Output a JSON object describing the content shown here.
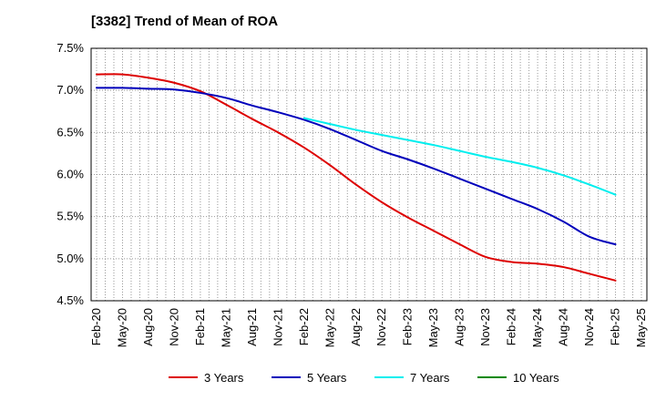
{
  "chart_data": {
    "type": "line",
    "title": "[3382]  Trend of Mean of ROA",
    "xlabel": "",
    "ylabel": "",
    "categories": [
      "Feb-20",
      "May-20",
      "Aug-20",
      "Nov-20",
      "Feb-21",
      "May-21",
      "Aug-21",
      "Nov-21",
      "Feb-22",
      "May-22",
      "Aug-22",
      "Nov-22",
      "Feb-23",
      "May-23",
      "Aug-23",
      "Nov-23",
      "Feb-24",
      "May-24",
      "Aug-24",
      "Nov-24",
      "Feb-25",
      "May-25"
    ],
    "ylim": [
      4.5,
      7.5
    ],
    "yticks": [
      4.5,
      5.0,
      5.5,
      6.0,
      6.5,
      7.0,
      7.5
    ],
    "ytick_labels": [
      "4.5%",
      "5.0%",
      "5.5%",
      "6.0%",
      "6.5%",
      "7.0%",
      "7.5%"
    ],
    "grid": true,
    "legend_position": "bottom",
    "series": [
      {
        "name": "3 Years",
        "color": "#dd0000",
        "values": [
          7.19,
          7.19,
          7.15,
          7.09,
          6.99,
          6.83,
          6.66,
          6.5,
          6.32,
          6.11,
          5.88,
          5.67,
          5.49,
          5.33,
          5.17,
          5.02,
          4.96,
          4.94,
          4.9,
          4.82,
          4.74,
          null
        ]
      },
      {
        "name": "5 Years",
        "color": "#0000bb",
        "values": [
          7.03,
          7.03,
          7.02,
          7.01,
          6.97,
          6.91,
          6.82,
          6.74,
          6.65,
          6.54,
          6.41,
          6.28,
          6.18,
          6.07,
          5.95,
          5.83,
          5.71,
          5.59,
          5.44,
          5.26,
          5.17,
          null
        ]
      },
      {
        "name": "7 Years",
        "color": "#00eeee",
        "values": [
          null,
          null,
          null,
          null,
          null,
          null,
          null,
          null,
          6.67,
          6.6,
          6.53,
          6.47,
          6.41,
          6.35,
          6.28,
          6.21,
          6.15,
          6.08,
          5.99,
          5.88,
          5.76,
          null
        ]
      },
      {
        "name": "10 Years",
        "color": "#008800",
        "values": [
          null,
          null,
          null,
          null,
          null,
          null,
          null,
          null,
          null,
          null,
          null,
          null,
          null,
          null,
          null,
          null,
          null,
          null,
          null,
          null,
          null,
          null
        ]
      }
    ]
  }
}
